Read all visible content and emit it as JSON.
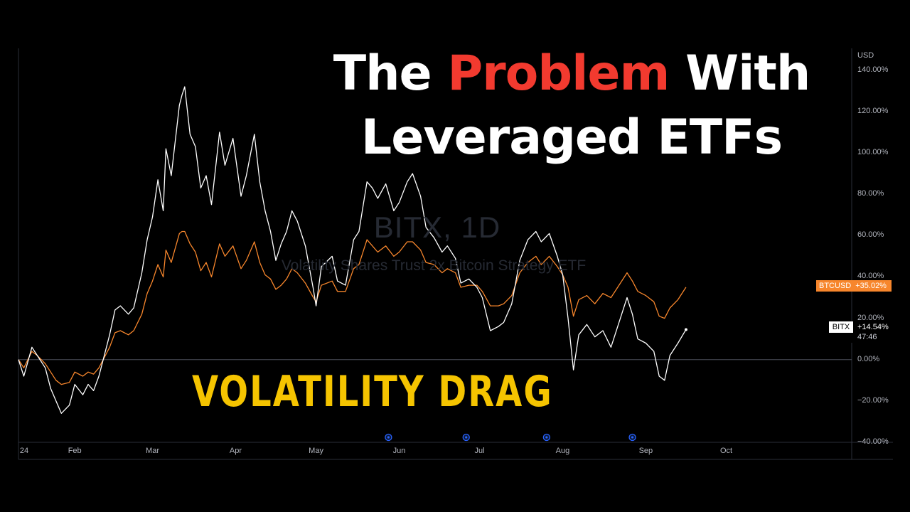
{
  "watermark": {
    "symbol": "BITX, 1D",
    "description": "Volatility Shares Trust 2x Bitcoin Strategy ETF"
  },
  "headline": {
    "line1_before": "The",
    "line1_accent": "Problem",
    "line1_after": "With",
    "line2": "Leveraged ETFs",
    "accent_color": "#f23a2f"
  },
  "overlay_text": "VOLATILITY DRAG",
  "price_axis": {
    "currency": "USD",
    "ticks": [
      "140.00%",
      "120.00%",
      "100.00%",
      "80.00%",
      "60.00%",
      "40.00%",
      "20.00%",
      "0.00%",
      "−20.00%",
      "−40.00%"
    ]
  },
  "series_tags": {
    "btc": {
      "symbol": "BTCUSD",
      "value": "+35.02%",
      "color": "#f7862c"
    },
    "bitx": {
      "symbol": "BITX",
      "value": "+14.54%",
      "countdown": "47:46",
      "color": "#ffffff"
    }
  },
  "time_axis": {
    "labels": [
      "24",
      "Feb",
      "Mar",
      "Apr",
      "May",
      "Jun",
      "Jul",
      "Aug",
      "Sep",
      "Oct"
    ]
  },
  "colors": {
    "background": "#000000",
    "bitx_line": "#ffffff",
    "btc_line": "#f7862c",
    "event_marker": "#2962ff"
  },
  "chart_data": {
    "type": "line",
    "x_axis": "dates 2024",
    "ylim": [
      -40,
      140
    ],
    "y_unit": "%",
    "legend_placement": "right price-axis tags",
    "series": [
      {
        "name": "BITX",
        "color": "#ffffff",
        "points": [
          [
            "2024-01-11",
            0
          ],
          [
            "2024-01-13",
            -8
          ],
          [
            "2024-01-16",
            6
          ],
          [
            "2024-01-18",
            2
          ],
          [
            "2024-01-21",
            -4
          ],
          [
            "2024-01-23",
            -14
          ],
          [
            "2024-01-25",
            -20
          ],
          [
            "2024-01-27",
            -26
          ],
          [
            "2024-01-30",
            -22
          ],
          [
            "2024-02-01",
            -12
          ],
          [
            "2024-02-04",
            -17
          ],
          [
            "2024-02-06",
            -12
          ],
          [
            "2024-02-08",
            -15
          ],
          [
            "2024-02-10",
            -8
          ],
          [
            "2024-02-12",
            2
          ],
          [
            "2024-02-14",
            12
          ],
          [
            "2024-02-16",
            24
          ],
          [
            "2024-02-18",
            26
          ],
          [
            "2024-02-21",
            22
          ],
          [
            "2024-02-23",
            25
          ],
          [
            "2024-02-26",
            42
          ],
          [
            "2024-02-28",
            58
          ],
          [
            "2024-03-01",
            69
          ],
          [
            "2024-03-03",
            87
          ],
          [
            "2024-03-05",
            72
          ],
          [
            "2024-03-06",
            102
          ],
          [
            "2024-03-08",
            89
          ],
          [
            "2024-03-11",
            123
          ],
          [
            "2024-03-12",
            128
          ],
          [
            "2024-03-13",
            132
          ],
          [
            "2024-03-15",
            109
          ],
          [
            "2024-03-17",
            103
          ],
          [
            "2024-03-19",
            83
          ],
          [
            "2024-03-21",
            89
          ],
          [
            "2024-03-23",
            75
          ],
          [
            "2024-03-26",
            110
          ],
          [
            "2024-03-28",
            94
          ],
          [
            "2024-03-31",
            107
          ],
          [
            "2024-04-03",
            79
          ],
          [
            "2024-04-05",
            89
          ],
          [
            "2024-04-08",
            109
          ],
          [
            "2024-04-10",
            86
          ],
          [
            "2024-04-12",
            72
          ],
          [
            "2024-04-14",
            62
          ],
          [
            "2024-04-16",
            48
          ],
          [
            "2024-04-18",
            56
          ],
          [
            "2024-04-20",
            62
          ],
          [
            "2024-04-22",
            72
          ],
          [
            "2024-04-24",
            67
          ],
          [
            "2024-04-27",
            55
          ],
          [
            "2024-04-30",
            34
          ],
          [
            "2024-05-01",
            26
          ],
          [
            "2024-05-03",
            45
          ],
          [
            "2024-05-07",
            50
          ],
          [
            "2024-05-09",
            38
          ],
          [
            "2024-05-12",
            36
          ],
          [
            "2024-05-15",
            58
          ],
          [
            "2024-05-17",
            62
          ],
          [
            "2024-05-20",
            86
          ],
          [
            "2024-05-22",
            83
          ],
          [
            "2024-05-24",
            78
          ],
          [
            "2024-05-27",
            85
          ],
          [
            "2024-05-30",
            72
          ],
          [
            "2024-06-01",
            76
          ],
          [
            "2024-06-04",
            86
          ],
          [
            "2024-06-06",
            90
          ],
          [
            "2024-06-09",
            79
          ],
          [
            "2024-06-11",
            64
          ],
          [
            "2024-06-14",
            59
          ],
          [
            "2024-06-17",
            52
          ],
          [
            "2024-06-19",
            55
          ],
          [
            "2024-06-22",
            49
          ],
          [
            "2024-06-24",
            37
          ],
          [
            "2024-06-27",
            39
          ],
          [
            "2024-06-30",
            35
          ],
          [
            "2024-07-02",
            30
          ],
          [
            "2024-07-05",
            14
          ],
          [
            "2024-07-08",
            16
          ],
          [
            "2024-07-10",
            18
          ],
          [
            "2024-07-13",
            27
          ],
          [
            "2024-07-16",
            48
          ],
          [
            "2024-07-19",
            58
          ],
          [
            "2024-07-22",
            62
          ],
          [
            "2024-07-24",
            57
          ],
          [
            "2024-07-27",
            61
          ],
          [
            "2024-07-30",
            50
          ],
          [
            "2024-08-01",
            41
          ],
          [
            "2024-08-03",
            20
          ],
          [
            "2024-08-05",
            -5
          ],
          [
            "2024-08-07",
            12
          ],
          [
            "2024-08-10",
            17
          ],
          [
            "2024-08-13",
            11
          ],
          [
            "2024-08-16",
            14
          ],
          [
            "2024-08-19",
            6
          ],
          [
            "2024-08-22",
            18
          ],
          [
            "2024-08-25",
            30
          ],
          [
            "2024-08-27",
            22
          ],
          [
            "2024-08-29",
            10
          ],
          [
            "2024-09-01",
            8
          ],
          [
            "2024-09-04",
            4
          ],
          [
            "2024-09-06",
            -8
          ],
          [
            "2024-09-08",
            -10
          ],
          [
            "2024-09-10",
            2
          ],
          [
            "2024-09-13",
            8
          ],
          [
            "2024-09-16",
            14.54
          ]
        ]
      },
      {
        "name": "BTCUSD",
        "color": "#f7862c",
        "points": [
          [
            "2024-01-11",
            0
          ],
          [
            "2024-01-13",
            -4
          ],
          [
            "2024-01-16",
            4
          ],
          [
            "2024-01-18",
            2
          ],
          [
            "2024-01-21",
            -2
          ],
          [
            "2024-01-23",
            -6
          ],
          [
            "2024-01-25",
            -10
          ],
          [
            "2024-01-27",
            -12
          ],
          [
            "2024-01-30",
            -11
          ],
          [
            "2024-02-01",
            -6
          ],
          [
            "2024-02-04",
            -8
          ],
          [
            "2024-02-06",
            -6
          ],
          [
            "2024-02-08",
            -7
          ],
          [
            "2024-02-10",
            -4
          ],
          [
            "2024-02-12",
            1
          ],
          [
            "2024-02-14",
            6
          ],
          [
            "2024-02-16",
            13
          ],
          [
            "2024-02-18",
            14
          ],
          [
            "2024-02-21",
            12
          ],
          [
            "2024-02-23",
            14
          ],
          [
            "2024-02-26",
            22
          ],
          [
            "2024-02-28",
            32
          ],
          [
            "2024-03-01",
            38
          ],
          [
            "2024-03-03",
            46
          ],
          [
            "2024-03-05",
            40
          ],
          [
            "2024-03-06",
            53
          ],
          [
            "2024-03-08",
            47
          ],
          [
            "2024-03-11",
            61
          ],
          [
            "2024-03-12",
            62
          ],
          [
            "2024-03-13",
            62
          ],
          [
            "2024-03-15",
            56
          ],
          [
            "2024-03-17",
            52
          ],
          [
            "2024-03-19",
            43
          ],
          [
            "2024-03-21",
            47
          ],
          [
            "2024-03-23",
            40
          ],
          [
            "2024-03-26",
            56
          ],
          [
            "2024-03-28",
            50
          ],
          [
            "2024-03-31",
            55
          ],
          [
            "2024-04-03",
            44
          ],
          [
            "2024-04-05",
            48
          ],
          [
            "2024-04-08",
            57
          ],
          [
            "2024-04-10",
            47
          ],
          [
            "2024-04-12",
            41
          ],
          [
            "2024-04-14",
            39
          ],
          [
            "2024-04-16",
            34
          ],
          [
            "2024-04-18",
            36
          ],
          [
            "2024-04-20",
            39
          ],
          [
            "2024-04-22",
            44
          ],
          [
            "2024-04-24",
            42
          ],
          [
            "2024-04-27",
            37
          ],
          [
            "2024-04-30",
            30
          ],
          [
            "2024-05-01",
            28
          ],
          [
            "2024-05-03",
            36
          ],
          [
            "2024-05-07",
            38
          ],
          [
            "2024-05-09",
            33
          ],
          [
            "2024-05-12",
            33
          ],
          [
            "2024-05-15",
            44
          ],
          [
            "2024-05-17",
            46
          ],
          [
            "2024-05-20",
            58
          ],
          [
            "2024-05-22",
            55
          ],
          [
            "2024-05-24",
            52
          ],
          [
            "2024-05-27",
            55
          ],
          [
            "2024-05-30",
            50
          ],
          [
            "2024-06-01",
            52
          ],
          [
            "2024-06-04",
            57
          ],
          [
            "2024-06-06",
            57
          ],
          [
            "2024-06-09",
            53
          ],
          [
            "2024-06-11",
            47
          ],
          [
            "2024-06-14",
            46
          ],
          [
            "2024-06-17",
            42
          ],
          [
            "2024-06-19",
            44
          ],
          [
            "2024-06-22",
            42
          ],
          [
            "2024-06-24",
            35
          ],
          [
            "2024-06-27",
            36
          ],
          [
            "2024-06-30",
            36
          ],
          [
            "2024-07-02",
            33
          ],
          [
            "2024-07-05",
            26
          ],
          [
            "2024-07-08",
            26
          ],
          [
            "2024-07-10",
            27
          ],
          [
            "2024-07-13",
            31
          ],
          [
            "2024-07-16",
            42
          ],
          [
            "2024-07-19",
            47
          ],
          [
            "2024-07-22",
            50
          ],
          [
            "2024-07-24",
            46
          ],
          [
            "2024-07-27",
            50
          ],
          [
            "2024-07-30",
            45
          ],
          [
            "2024-08-01",
            41
          ],
          [
            "2024-08-03",
            35
          ],
          [
            "2024-08-05",
            21
          ],
          [
            "2024-08-07",
            29
          ],
          [
            "2024-08-10",
            31
          ],
          [
            "2024-08-13",
            27
          ],
          [
            "2024-08-16",
            32
          ],
          [
            "2024-08-19",
            30
          ],
          [
            "2024-08-22",
            36
          ],
          [
            "2024-08-25",
            42
          ],
          [
            "2024-08-27",
            38
          ],
          [
            "2024-08-29",
            33
          ],
          [
            "2024-09-01",
            31
          ],
          [
            "2024-09-04",
            28
          ],
          [
            "2024-09-06",
            21
          ],
          [
            "2024-09-08",
            20
          ],
          [
            "2024-09-10",
            25
          ],
          [
            "2024-09-13",
            29
          ],
          [
            "2024-09-16",
            35.02
          ]
        ]
      }
    ],
    "event_markers": [
      "2024-05-28",
      "2024-06-26",
      "2024-07-26",
      "2024-08-27"
    ]
  }
}
